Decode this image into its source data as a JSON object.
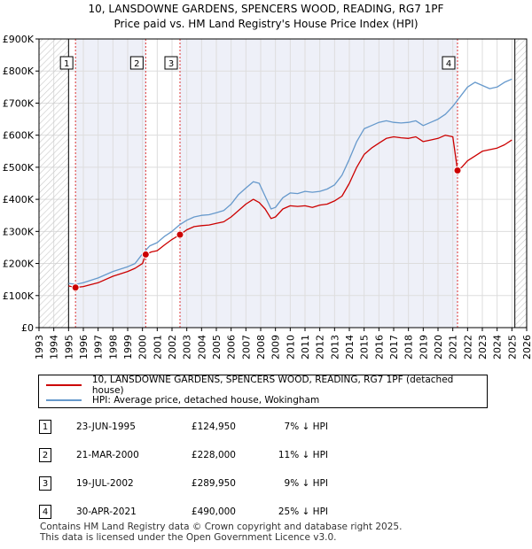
{
  "header": {
    "line1": "10, LANSDOWNE GARDENS, SPENCERS WOOD, READING, RG7 1PF",
    "line2": "Price paid vs. HM Land Registry's House Price Index (HPI)"
  },
  "colors": {
    "price_line": "#cc0000",
    "hpi_line": "#6699cc",
    "marker_dash": "#dd3333",
    "grid": "#dddddd",
    "shade": "#eef0f8"
  },
  "chart_data": {
    "type": "line",
    "title": "Price paid vs. HM Land Registry's House Price Index (HPI)",
    "xlim": [
      1993,
      2026
    ],
    "ylim": [
      0,
      900000
    ],
    "x_ticks": [
      "1993",
      "1994",
      "1995",
      "1996",
      "1997",
      "1998",
      "1999",
      "2000",
      "2001",
      "2002",
      "2003",
      "2004",
      "2005",
      "2006",
      "2007",
      "2008",
      "2009",
      "2010",
      "2011",
      "2012",
      "2013",
      "2014",
      "2015",
      "2016",
      "2017",
      "2018",
      "2019",
      "2020",
      "2021",
      "2022",
      "2023",
      "2024",
      "2025",
      "2026"
    ],
    "y_ticks": [
      {
        "value": 0,
        "label": "£0"
      },
      {
        "value": 100000,
        "label": "£100K"
      },
      {
        "value": 200000,
        "label": "£200K"
      },
      {
        "value": 300000,
        "label": "£300K"
      },
      {
        "value": 400000,
        "label": "£400K"
      },
      {
        "value": 500000,
        "label": "£500K"
      },
      {
        "value": 600000,
        "label": "£600K"
      },
      {
        "value": 700000,
        "label": "£700K"
      },
      {
        "value": 800000,
        "label": "£800K"
      },
      {
        "value": 900000,
        "label": "£900K"
      }
    ],
    "hatched_ranges": [
      [
        1993,
        1995.0
      ],
      [
        2025.2,
        2026
      ]
    ],
    "series": [
      {
        "name": "10, LANSDOWNE GARDENS, SPENCERS WOOD, READING, RG7 1PF (detached house)",
        "color": "#cc0000",
        "x": [
          1995.0,
          1995.47,
          1996.0,
          1997.0,
          1998.0,
          1999.0,
          1999.5,
          2000.0,
          2000.22,
          2000.6,
          2001.0,
          2001.5,
          2002.0,
          2002.54,
          2003.0,
          2003.5,
          2004.0,
          2004.5,
          2005.0,
          2005.5,
          2006.0,
          2006.5,
          2007.0,
          2007.5,
          2007.9,
          2008.3,
          2008.7,
          2009.0,
          2009.5,
          2010.0,
          2010.5,
          2011.0,
          2011.5,
          2012.0,
          2012.5,
          2013.0,
          2013.5,
          2014.0,
          2014.5,
          2015.0,
          2015.5,
          2016.0,
          2016.5,
          2017.0,
          2017.5,
          2018.0,
          2018.5,
          2019.0,
          2019.5,
          2020.0,
          2020.5,
          2021.0,
          2021.32,
          2021.6,
          2022.0,
          2022.5,
          2023.0,
          2023.5,
          2024.0,
          2024.5,
          2025.0
        ],
        "values": [
          130000,
          124950,
          128000,
          140000,
          160000,
          175000,
          185000,
          200000,
          228000,
          236000,
          240000,
          258000,
          275000,
          289950,
          305000,
          315000,
          318000,
          320000,
          325000,
          330000,
          345000,
          365000,
          385000,
          400000,
          390000,
          370000,
          340000,
          345000,
          370000,
          380000,
          378000,
          380000,
          375000,
          382000,
          385000,
          395000,
          410000,
          450000,
          500000,
          540000,
          560000,
          575000,
          590000,
          595000,
          592000,
          590000,
          595000,
          580000,
          585000,
          590000,
          600000,
          595000,
          490000,
          500000,
          520000,
          535000,
          550000,
          555000,
          560000,
          570000,
          585000
        ]
      },
      {
        "name": "HPI: Average price, detached house, Wokingham",
        "color": "#6699cc",
        "x": [
          1995.0,
          1995.5,
          1996.0,
          1997.0,
          1998.0,
          1999.0,
          1999.5,
          2000.0,
          2000.5,
          2001.0,
          2001.5,
          2002.0,
          2002.5,
          2003.0,
          2003.5,
          2004.0,
          2004.5,
          2005.0,
          2005.5,
          2006.0,
          2006.5,
          2007.0,
          2007.5,
          2007.9,
          2008.3,
          2008.7,
          2009.0,
          2009.5,
          2010.0,
          2010.5,
          2011.0,
          2011.5,
          2012.0,
          2012.5,
          2013.0,
          2013.5,
          2014.0,
          2014.5,
          2015.0,
          2015.5,
          2016.0,
          2016.5,
          2017.0,
          2017.5,
          2018.0,
          2018.5,
          2019.0,
          2019.5,
          2020.0,
          2020.5,
          2021.0,
          2021.5,
          2022.0,
          2022.5,
          2023.0,
          2023.5,
          2024.0,
          2024.5,
          2025.0
        ],
        "values": [
          138000,
          135000,
          140000,
          155000,
          175000,
          190000,
          200000,
          230000,
          255000,
          265000,
          285000,
          300000,
          320000,
          335000,
          345000,
          350000,
          352000,
          358000,
          365000,
          385000,
          415000,
          435000,
          455000,
          450000,
          410000,
          370000,
          375000,
          405000,
          420000,
          418000,
          425000,
          422000,
          425000,
          432000,
          445000,
          475000,
          525000,
          580000,
          620000,
          630000,
          640000,
          645000,
          640000,
          638000,
          640000,
          645000,
          630000,
          640000,
          650000,
          665000,
          690000,
          720000,
          750000,
          765000,
          755000,
          745000,
          750000,
          765000,
          775000
        ]
      }
    ],
    "sales": [
      {
        "num": "1",
        "x": 1995.47,
        "value": 124950
      },
      {
        "num": "2",
        "x": 2000.22,
        "value": 228000
      },
      {
        "num": "3",
        "x": 2002.54,
        "value": 289950
      },
      {
        "num": "4",
        "x": 2021.32,
        "value": 490000
      }
    ]
  },
  "legend": {
    "property": "10, LANSDOWNE GARDENS, SPENCERS WOOD, READING, RG7 1PF (detached house)",
    "hpi": "HPI: Average price, detached house, Wokingham"
  },
  "sales_table": [
    {
      "num": "1",
      "date": "23-JUN-1995",
      "price": "£124,950",
      "hpi": "7% ↓ HPI"
    },
    {
      "num": "2",
      "date": "21-MAR-2000",
      "price": "£228,000",
      "hpi": "11% ↓ HPI"
    },
    {
      "num": "3",
      "date": "19-JUL-2002",
      "price": "£289,950",
      "hpi": "9% ↓ HPI"
    },
    {
      "num": "4",
      "date": "30-APR-2021",
      "price": "£490,000",
      "hpi": "25% ↓ HPI"
    }
  ],
  "footer": {
    "line1": "Contains HM Land Registry data © Crown copyright and database right 2025.",
    "line2": "This data is licensed under the Open Government Licence v3.0."
  }
}
